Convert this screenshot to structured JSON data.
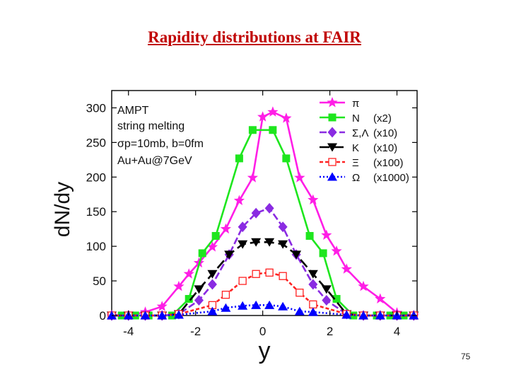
{
  "slide": {
    "title": "Rapidity distributions at FAIR",
    "page_number": "75"
  },
  "chart_data": {
    "type": "line",
    "title": "",
    "xlabel": "y",
    "ylabel": "dN/dy",
    "xlim": [
      -4.5,
      4.6
    ],
    "ylim": [
      0,
      325
    ],
    "x_ticks": [
      -4,
      -2,
      0,
      2,
      4
    ],
    "y_ticks": [
      0,
      50,
      100,
      150,
      200,
      250,
      300
    ],
    "grid": false,
    "legend_position": "top-right",
    "annotation": [
      "AMPT",
      "string melting",
      "σp=10mb, b=0fm",
      "Au+Au@7GeV"
    ],
    "series": [
      {
        "name": "π",
        "scale": "",
        "color": "#ff1ee6",
        "marker": "star",
        "dash": "",
        "x": [
          -4.5,
          -4.0,
          -3.5,
          -3.0,
          -2.5,
          -2.2,
          -1.9,
          -1.5,
          -1.1,
          -0.7,
          -0.3,
          0.0,
          0.3,
          0.7,
          1.1,
          1.5,
          1.9,
          2.2,
          2.5,
          3.0,
          3.5,
          4.0,
          4.5
        ],
        "values": [
          0,
          0,
          5,
          13,
          42,
          60,
          76,
          99,
          125,
          166,
          199,
          287,
          294,
          285,
          199,
          167,
          116,
          93,
          67,
          42,
          24,
          4,
          0
        ]
      },
      {
        "name": "N",
        "scale": "(x2)",
        "color": "#1ee61e",
        "marker": "square",
        "dash": "",
        "x": [
          -4.5,
          -4.2,
          -3.8,
          -3.4,
          -3.0,
          -2.7,
          -2.2,
          -1.8,
          -1.4,
          -0.7,
          -0.3,
          0.3,
          0.7,
          1.4,
          1.8,
          2.2,
          2.7,
          3.0,
          3.4,
          3.8,
          4.2,
          4.5
        ],
        "values": [
          0,
          0,
          0,
          0,
          0,
          0,
          24,
          90,
          115,
          227,
          268,
          268,
          227,
          115,
          90,
          24,
          0,
          0,
          0,
          0,
          0,
          0
        ]
      },
      {
        "name": "Σ,Λ",
        "scale": "(x10)",
        "color": "#8a2be2",
        "marker": "diamond",
        "dash": "10 4",
        "x": [
          -4.5,
          -4.0,
          -3.5,
          -3.0,
          -2.5,
          -1.9,
          -1.5,
          -1.0,
          -0.6,
          -0.2,
          0.2,
          0.6,
          1.0,
          1.5,
          1.9,
          2.5,
          3.0,
          3.5,
          4.0,
          4.5
        ],
        "values": [
          0,
          0,
          0,
          0,
          2,
          22,
          45,
          88,
          128,
          148,
          155,
          128,
          88,
          45,
          22,
          2,
          0,
          0,
          0,
          0
        ]
      },
      {
        "name": "K",
        "scale": "(x10)",
        "color": "#000000",
        "marker": "triangle-down",
        "dash": "14 6",
        "x": [
          -4.5,
          -4.0,
          -3.5,
          -3.0,
          -2.5,
          -1.9,
          -1.5,
          -1.0,
          -0.6,
          -0.2,
          0.2,
          0.6,
          1.0,
          1.5,
          1.9,
          2.5,
          3.0,
          3.5,
          4.0,
          4.5
        ],
        "values": [
          0,
          0,
          0,
          0,
          2,
          38,
          60,
          88,
          103,
          106,
          106,
          103,
          88,
          60,
          38,
          2,
          0,
          0,
          0,
          0
        ]
      },
      {
        "name": "Ξ",
        "scale": "(x100)",
        "color": "#ff2222",
        "marker": "square-open",
        "dash": "5 3",
        "x": [
          -4.5,
          -4.0,
          -3.5,
          -3.0,
          -2.5,
          -1.5,
          -1.1,
          -0.6,
          -0.2,
          0.2,
          0.6,
          1.1,
          1.5,
          2.5,
          3.0,
          3.5,
          4.0,
          4.5
        ],
        "values": [
          0,
          0,
          0,
          0,
          2,
          15,
          30,
          50,
          60,
          62,
          57,
          33,
          16,
          2,
          0,
          0,
          0,
          0
        ]
      },
      {
        "name": "Ω",
        "scale": "(x1000)",
        "color": "#0000ff",
        "marker": "triangle",
        "dash": "2 3",
        "x": [
          -4.5,
          -4.0,
          -3.5,
          -3.0,
          -2.5,
          -1.5,
          -1.1,
          -0.6,
          -0.2,
          0.2,
          0.6,
          1.1,
          1.5,
          2.5,
          3.0,
          3.5,
          4.0,
          4.5
        ],
        "values": [
          0,
          0,
          0,
          0,
          1,
          6,
          11,
          14,
          15,
          15,
          13,
          6,
          5,
          1,
          0,
          0,
          0,
          0
        ]
      }
    ]
  }
}
